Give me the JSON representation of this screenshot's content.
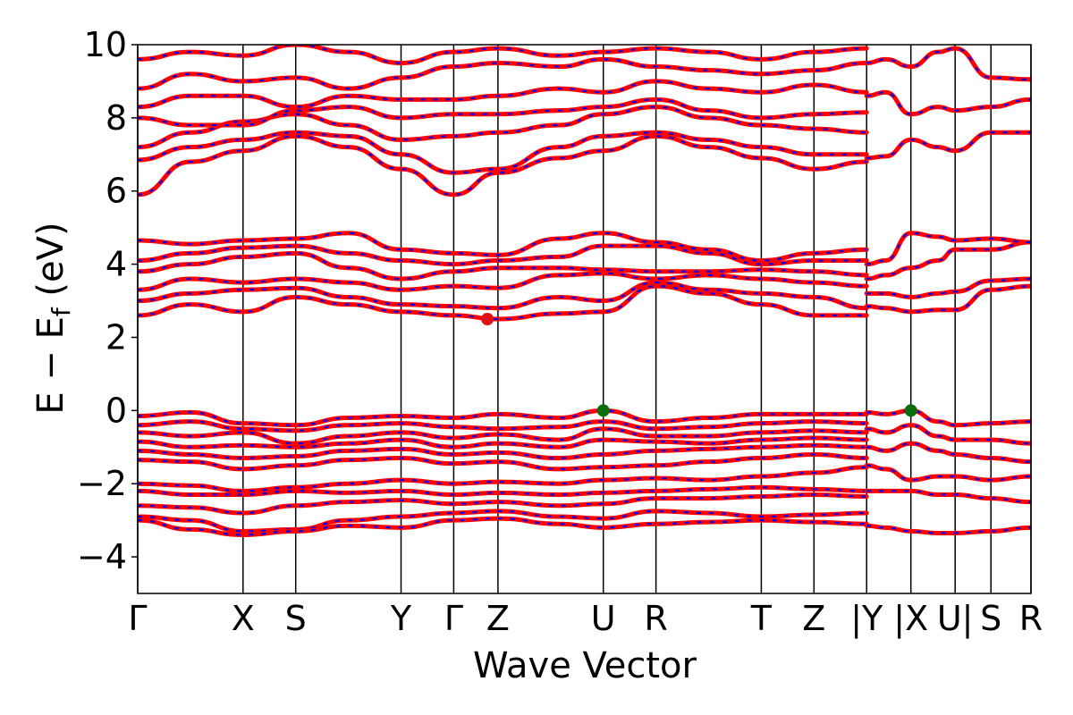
{
  "chart_data": {
    "type": "line",
    "title": "",
    "xlabel": "Wave Vector",
    "ylabel_main": "E − E",
    "ylabel_sub": "f",
    "ylabel_unit": " (eV)",
    "ylim": [
      -5,
      10
    ],
    "yticks": [
      -4,
      -2,
      0,
      2,
      4,
      6,
      8,
      10
    ],
    "ytick_labels": [
      "−4",
      "−2",
      "0",
      "2",
      "4",
      "6",
      "8",
      "10"
    ],
    "kpath": [
      {
        "label": "Γ",
        "x": 0.0
      },
      {
        "label": "X",
        "x": 1.0
      },
      {
        "label": "S",
        "x": 1.5
      },
      {
        "label": "Y",
        "x": 2.5
      },
      {
        "label": "Γ",
        "x": 3.0
      },
      {
        "label": "Z",
        "x": 3.42
      },
      {
        "label": "U",
        "x": 4.42
      },
      {
        "label": "R",
        "x": 4.92
      },
      {
        "label": "T",
        "x": 5.92
      },
      {
        "label": "Z",
        "x": 6.42
      },
      {
        "label": "|Y",
        "x": 6.92
      },
      {
        "label": "|X",
        "x": 7.34
      },
      {
        "label": "U|",
        "x": 7.76
      },
      {
        "label": "S",
        "x": 8.1
      },
      {
        "label": "R",
        "x": 8.48
      }
    ],
    "xlim": [
      0,
      8.48
    ],
    "band_colors": {
      "main": "#ff0000",
      "dash": "#0000ff"
    },
    "markers": {
      "cbm": {
        "x": 3.32,
        "y": 2.5,
        "color": "#dd1111"
      },
      "vbm": [
        {
          "x": 4.42,
          "y": 0.0,
          "color": "#0a6e0a"
        },
        {
          "x": 7.34,
          "y": 0.0,
          "color": "#0a6e0a"
        }
      ]
    },
    "bands_valence": [
      {
        "x": [
          0,
          0.5,
          1.0,
          1.5,
          2.0,
          2.5,
          3.0,
          3.42,
          4.0,
          4.42,
          4.92,
          5.42,
          5.92,
          6.42,
          6.92
        ],
        "y": [
          -0.15,
          -0.05,
          -0.35,
          -0.4,
          -0.2,
          -0.15,
          -0.2,
          -0.1,
          -0.2,
          0.0,
          -0.3,
          -0.2,
          -0.1,
          -0.1,
          -0.1
        ]
      },
      {
        "x": [
          0,
          0.5,
          1.0,
          1.5,
          2.0,
          2.5,
          3.0,
          3.42,
          4.0,
          4.42,
          4.92,
          5.42,
          5.92,
          6.42,
          6.92
        ],
        "y": [
          -0.4,
          -0.3,
          -0.5,
          -0.55,
          -0.4,
          -0.35,
          -0.45,
          -0.5,
          -0.45,
          -0.3,
          -0.5,
          -0.45,
          -0.35,
          -0.3,
          -0.35
        ]
      },
      {
        "x": [
          0,
          0.5,
          1.0,
          1.5,
          2.0,
          2.5,
          3.0,
          3.42,
          4.0,
          4.42,
          4.92,
          5.42,
          5.92,
          6.42,
          6.92
        ],
        "y": [
          -0.6,
          -0.7,
          -0.6,
          -0.9,
          -0.7,
          -0.6,
          -0.75,
          -0.65,
          -0.8,
          -0.5,
          -0.7,
          -0.7,
          -0.6,
          -0.55,
          -0.6
        ]
      },
      {
        "x": [
          0,
          0.5,
          1.0,
          1.5,
          2.0,
          2.5,
          3.0,
          3.42,
          4.0,
          4.42,
          4.92,
          5.42,
          5.92,
          6.42,
          6.92
        ],
        "y": [
          -0.85,
          -1.0,
          -0.95,
          -1.0,
          -0.9,
          -0.8,
          -1.0,
          -0.9,
          -1.0,
          -0.8,
          -0.85,
          -0.9,
          -0.8,
          -0.75,
          -0.8
        ]
      },
      {
        "x": [
          0,
          0.5,
          1.0,
          1.5,
          2.0,
          2.5,
          3.0,
          3.42,
          4.0,
          4.42,
          4.92,
          5.42,
          5.92,
          6.42,
          6.92
        ],
        "y": [
          -1.1,
          -1.2,
          -1.3,
          -1.25,
          -1.1,
          -1.05,
          -1.2,
          -1.15,
          -1.3,
          -1.2,
          -1.1,
          -1.05,
          -1.0,
          -0.95,
          -1.0
        ]
      },
      {
        "x": [
          0,
          0.5,
          1.0,
          1.5,
          2.0,
          2.5,
          3.0,
          3.42,
          4.0,
          4.42,
          4.92,
          5.42,
          5.92,
          6.42,
          6.92
        ],
        "y": [
          -1.35,
          -1.4,
          -1.6,
          -1.5,
          -1.35,
          -1.3,
          -1.45,
          -1.4,
          -1.6,
          -1.55,
          -1.5,
          -1.4,
          -1.3,
          -1.2,
          -1.3
        ]
      },
      {
        "x": [
          0,
          0.5,
          1.0,
          1.5,
          2.0,
          2.5,
          3.0,
          3.42,
          4.0,
          4.42,
          4.92,
          5.42,
          5.92,
          6.42,
          6.92
        ],
        "y": [
          -2.0,
          -2.05,
          -2.2,
          -2.1,
          -2.0,
          -1.9,
          -2.0,
          -1.95,
          -2.0,
          -1.9,
          -1.85,
          -1.9,
          -1.8,
          -1.7,
          -1.55
        ]
      },
      {
        "x": [
          0,
          0.5,
          1.0,
          1.5,
          2.0,
          2.5,
          3.0,
          3.42,
          4.0,
          4.42,
          4.92,
          5.42,
          5.92,
          6.42,
          6.92
        ],
        "y": [
          -2.2,
          -2.3,
          -2.3,
          -2.2,
          -2.25,
          -2.2,
          -2.3,
          -2.25,
          -2.3,
          -2.25,
          -2.2,
          -2.15,
          -2.1,
          -2.15,
          -2.2
        ]
      },
      {
        "x": [
          0,
          0.5,
          1.0,
          1.5,
          2.0,
          2.5,
          3.0,
          3.42,
          4.0,
          4.42,
          4.92,
          5.42,
          5.92,
          6.42,
          6.92
        ],
        "y": [
          -2.6,
          -2.65,
          -2.8,
          -2.6,
          -2.5,
          -2.45,
          -2.55,
          -2.5,
          -2.6,
          -2.55,
          -2.4,
          -2.4,
          -2.35,
          -2.3,
          -2.35
        ]
      },
      {
        "x": [
          0,
          0.5,
          1.0,
          1.5,
          2.0,
          2.5,
          3.0,
          3.42,
          4.0,
          4.42,
          4.92,
          5.42,
          5.92,
          6.42,
          6.92
        ],
        "y": [
          -2.9,
          -3.0,
          -3.3,
          -3.25,
          -3.0,
          -2.9,
          -2.8,
          -2.75,
          -2.9,
          -2.95,
          -2.75,
          -2.8,
          -2.9,
          -2.85,
          -2.8
        ]
      },
      {
        "x": [
          0,
          0.5,
          1.0,
          1.5,
          2.0,
          2.5,
          3.0,
          3.42,
          4.0,
          4.42,
          4.92,
          5.42,
          5.92,
          6.42,
          6.92
        ],
        "y": [
          -3.0,
          -3.25,
          -3.4,
          -3.3,
          -3.15,
          -3.2,
          -3.0,
          -2.95,
          -3.1,
          -3.2,
          -3.1,
          -3.05,
          -3.0,
          -3.05,
          -3.1
        ]
      }
    ],
    "bands_conduction": [
      {
        "x": [
          0,
          0.5,
          1.0,
          1.5,
          2.0,
          2.5,
          3.0,
          3.42,
          4.0,
          4.42,
          4.92,
          5.42,
          5.92,
          6.42,
          6.92
        ],
        "y": [
          2.6,
          2.9,
          2.7,
          3.1,
          2.9,
          2.7,
          2.6,
          2.5,
          2.65,
          2.7,
          3.4,
          3.2,
          2.9,
          2.6,
          2.6
        ]
      },
      {
        "x": [
          0,
          0.5,
          1.0,
          1.5,
          2.0,
          2.5,
          3.0,
          3.42,
          4.0,
          4.42,
          4.92,
          5.42,
          5.92,
          6.42,
          6.92
        ],
        "y": [
          3.0,
          3.2,
          3.3,
          3.35,
          3.1,
          2.9,
          2.85,
          2.8,
          3.1,
          3.0,
          3.5,
          3.3,
          3.2,
          3.1,
          2.8
        ]
      },
      {
        "x": [
          0,
          0.5,
          1.0,
          1.5,
          2.0,
          2.5,
          3.0,
          3.42,
          4.0,
          4.42,
          4.92,
          5.42,
          5.92,
          6.42,
          6.92
        ],
        "y": [
          3.3,
          3.6,
          3.5,
          3.6,
          3.5,
          3.3,
          3.4,
          3.35,
          3.7,
          3.75,
          3.6,
          3.7,
          3.6,
          3.5,
          3.4
        ]
      },
      {
        "x": [
          0,
          0.5,
          1.0,
          1.5,
          2.0,
          2.5,
          3.0,
          3.42,
          4.0,
          4.42,
          4.92,
          5.42,
          5.92,
          6.42,
          6.92
        ],
        "y": [
          3.8,
          4.0,
          4.2,
          4.3,
          3.9,
          3.6,
          3.8,
          3.9,
          3.9,
          3.85,
          3.8,
          3.8,
          3.85,
          3.8,
          3.7
        ]
      },
      {
        "x": [
          0,
          0.5,
          1.0,
          1.5,
          2.0,
          2.5,
          3.0,
          3.42,
          4.0,
          4.42,
          4.92,
          5.42,
          5.92,
          6.42,
          6.92
        ],
        "y": [
          4.1,
          4.3,
          4.45,
          4.5,
          4.3,
          4.1,
          4.0,
          4.1,
          4.2,
          4.5,
          4.5,
          4.3,
          4.0,
          4.1,
          4.1
        ]
      },
      {
        "x": [
          0,
          0.5,
          1.0,
          1.5,
          2.0,
          2.5,
          3.0,
          3.42,
          4.0,
          4.42,
          4.92,
          5.42,
          5.92,
          6.42,
          6.92
        ],
        "y": [
          4.65,
          4.55,
          4.65,
          4.7,
          4.85,
          4.4,
          4.3,
          4.25,
          4.7,
          4.85,
          4.6,
          4.4,
          4.1,
          4.3,
          4.4
        ]
      },
      {
        "x": [
          0,
          0.5,
          1.0,
          1.5,
          2.0,
          2.5,
          3.0,
          3.42,
          4.0,
          4.42,
          4.92,
          5.42,
          5.92,
          6.42,
          6.92
        ],
        "y": [
          5.9,
          6.8,
          7.1,
          7.5,
          7.2,
          6.6,
          5.9,
          6.5,
          6.9,
          7.1,
          7.5,
          7.2,
          6.9,
          6.6,
          6.8
        ]
      },
      {
        "x": [
          0,
          0.5,
          1.0,
          1.5,
          2.0,
          2.5,
          3.0,
          3.42,
          4.0,
          4.42,
          4.92,
          5.42,
          5.92,
          6.42,
          6.92
        ],
        "y": [
          6.85,
          7.2,
          7.4,
          7.6,
          7.5,
          7.0,
          6.5,
          6.6,
          7.2,
          7.5,
          7.6,
          7.4,
          7.2,
          7.0,
          7.0
        ]
      },
      {
        "x": [
          0,
          0.5,
          1.0,
          1.5,
          2.0,
          2.5,
          3.0,
          3.42,
          4.0,
          4.42,
          4.92,
          5.42,
          5.92,
          6.42,
          6.92
        ],
        "y": [
          7.2,
          7.6,
          7.9,
          8.1,
          7.8,
          7.4,
          7.5,
          7.6,
          7.8,
          8.1,
          8.3,
          8.0,
          7.8,
          7.7,
          7.6
        ]
      },
      {
        "x": [
          0,
          0.5,
          1.0,
          1.5,
          2.0,
          2.5,
          3.0,
          3.42,
          4.0,
          4.42,
          4.92,
          5.42,
          5.92,
          6.42,
          6.92
        ],
        "y": [
          8.0,
          7.8,
          7.8,
          8.2,
          8.3,
          8.0,
          8.1,
          8.1,
          8.2,
          8.3,
          8.5,
          8.2,
          8.0,
          8.1,
          8.15
        ]
      },
      {
        "x": [
          0,
          0.5,
          1.0,
          1.5,
          2.0,
          2.5,
          3.0,
          3.42,
          4.0,
          4.42,
          4.92,
          5.42,
          5.92,
          6.42,
          6.92
        ],
        "y": [
          8.3,
          8.6,
          8.6,
          8.3,
          8.6,
          8.5,
          8.5,
          8.6,
          8.8,
          8.7,
          9.0,
          8.8,
          8.7,
          8.9,
          8.7
        ]
      },
      {
        "x": [
          0,
          0.5,
          1.0,
          1.5,
          2.0,
          2.5,
          3.0,
          3.42,
          4.0,
          4.42,
          4.92,
          5.42,
          5.92,
          6.42,
          6.92
        ],
        "y": [
          8.8,
          9.2,
          9.0,
          9.1,
          8.8,
          9.1,
          9.4,
          9.5,
          9.4,
          9.6,
          9.4,
          9.3,
          9.2,
          9.3,
          9.5
        ]
      },
      {
        "x": [
          0,
          0.5,
          1.0,
          1.5,
          2.0,
          2.5,
          3.0,
          3.42,
          4.0,
          4.42,
          4.92,
          5.42,
          5.92,
          6.42,
          6.92
        ],
        "y": [
          9.6,
          9.8,
          9.7,
          10.0,
          9.8,
          9.5,
          9.8,
          9.9,
          9.7,
          9.8,
          9.9,
          9.8,
          9.6,
          9.8,
          9.9
        ]
      }
    ],
    "bands_tail": [
      {
        "x": [
          6.92,
          7.1,
          7.34,
          7.6,
          7.76,
          8.1,
          8.48
        ],
        "y": [
          -0.05,
          -0.1,
          0.0,
          -0.3,
          -0.4,
          -0.35,
          -0.3
        ]
      },
      {
        "x": [
          6.92,
          7.1,
          7.34,
          7.6,
          7.76,
          8.1,
          8.48
        ],
        "y": [
          -0.5,
          -0.6,
          -0.4,
          -0.7,
          -0.8,
          -0.8,
          -0.9
        ]
      },
      {
        "x": [
          6.92,
          7.1,
          7.34,
          7.6,
          7.76,
          8.1,
          8.48
        ],
        "y": [
          -1.0,
          -1.1,
          -0.9,
          -1.1,
          -1.2,
          -1.3,
          -1.4
        ]
      },
      {
        "x": [
          6.92,
          7.1,
          7.34,
          7.6,
          7.76,
          8.1,
          8.48
        ],
        "y": [
          -1.5,
          -1.6,
          -1.9,
          -1.8,
          -1.8,
          -1.9,
          -1.8
        ]
      },
      {
        "x": [
          6.92,
          7.1,
          7.34,
          7.6,
          7.76,
          8.1,
          8.48
        ],
        "y": [
          -2.2,
          -2.2,
          -2.2,
          -2.3,
          -2.3,
          -2.4,
          -2.5
        ]
      },
      {
        "x": [
          6.92,
          7.1,
          7.34,
          7.6,
          7.76,
          8.1,
          8.48
        ],
        "y": [
          -3.15,
          -3.2,
          -3.3,
          -3.35,
          -3.35,
          -3.3,
          -3.2
        ]
      },
      {
        "x": [
          6.92,
          7.1,
          7.34,
          7.6,
          7.76,
          8.1,
          8.48
        ],
        "y": [
          2.85,
          2.8,
          2.7,
          2.75,
          2.75,
          3.3,
          3.4
        ]
      },
      {
        "x": [
          6.92,
          7.1,
          7.34,
          7.6,
          7.76,
          8.1,
          8.48
        ],
        "y": [
          3.2,
          3.2,
          3.1,
          3.2,
          3.25,
          3.55,
          3.6
        ]
      },
      {
        "x": [
          6.92,
          7.1,
          7.34,
          7.6,
          7.76,
          8.1,
          8.48
        ],
        "y": [
          3.6,
          3.7,
          3.9,
          4.1,
          4.4,
          4.4,
          4.6
        ]
      },
      {
        "x": [
          6.92,
          7.1,
          7.34,
          7.6,
          7.76,
          8.1,
          8.48
        ],
        "y": [
          4.0,
          4.1,
          4.85,
          4.75,
          4.65,
          4.7,
          4.6
        ]
      },
      {
        "x": [
          6.92,
          7.1,
          7.34,
          7.6,
          7.76,
          8.1,
          8.48
        ],
        "y": [
          6.9,
          6.95,
          7.4,
          7.2,
          7.1,
          7.6,
          7.6
        ]
      },
      {
        "x": [
          6.92,
          7.1,
          7.34,
          7.6,
          7.76,
          8.1,
          8.48
        ],
        "y": [
          8.6,
          8.7,
          8.1,
          8.3,
          8.2,
          8.3,
          8.5
        ]
      },
      {
        "x": [
          6.92,
          7.1,
          7.34,
          7.6,
          7.76,
          8.1,
          8.48
        ],
        "y": [
          9.5,
          9.6,
          9.4,
          9.8,
          9.9,
          9.1,
          9.05
        ]
      }
    ]
  }
}
